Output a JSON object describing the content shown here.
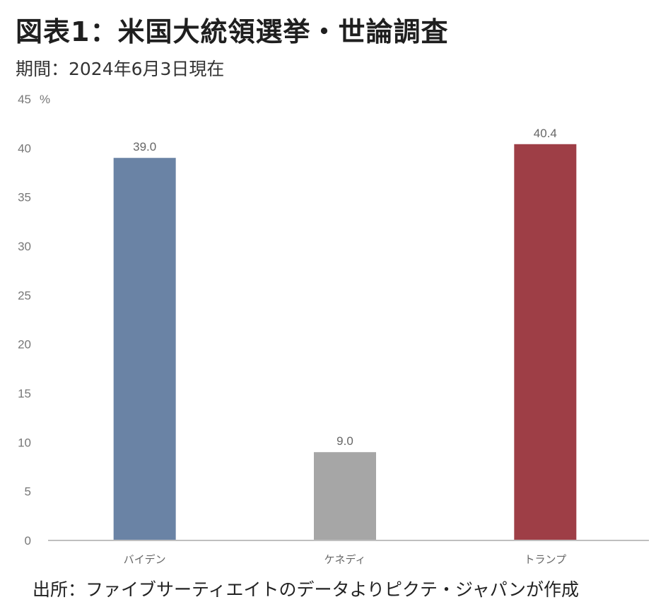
{
  "header": {
    "title": "図表1：米国大統領選挙・世論調査",
    "subtitle": "期間：2024年6月3日現在"
  },
  "footer": {
    "source": "出所：ファイブサーティエイトのデータよりピクテ・ジャパンが作成"
  },
  "chart_data": {
    "type": "bar",
    "title": "図表1：米国大統領選挙・世論調査",
    "subtitle": "期間：2024年6月3日現在",
    "categories": [
      "バイデン",
      "ケネディ",
      "トランプ"
    ],
    "values": [
      39.0,
      9.0,
      40.4
    ],
    "data_labels": [
      "39.0",
      "9.0",
      "40.4"
    ],
    "colors": [
      "#6a83a5",
      "#a6a6a6",
      "#9e3e46"
    ],
    "unit": "%",
    "ylim": [
      0,
      45
    ],
    "yticks": [
      0,
      5,
      10,
      15,
      20,
      25,
      30,
      35,
      40,
      45
    ],
    "grid": false,
    "legend": "none"
  }
}
